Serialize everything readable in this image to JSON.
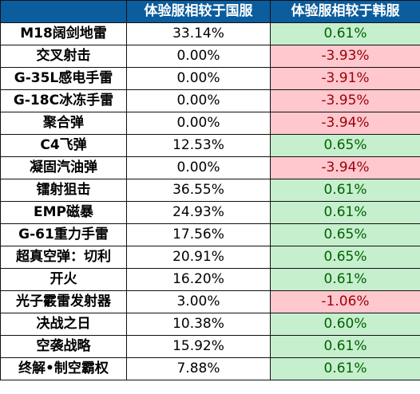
{
  "header": {
    "corner": "",
    "col_cn": "体验服相较于国服",
    "col_kr": "体验服相较于韩服"
  },
  "colors": {
    "header_bg": "#0b5d9e",
    "positive_bg": "#c6efce",
    "positive_text": "#006100",
    "negative_bg": "#ffc7ce",
    "negative_text": "#9c0006"
  },
  "rows": [
    {
      "name": "M18阔剑地雷",
      "cn": "33.14%",
      "kr": "0.61%",
      "sign": "pos"
    },
    {
      "name": "交叉射击",
      "cn": "0.00%",
      "kr": "-3.93%",
      "sign": "neg"
    },
    {
      "name": "G-35L感电手雷",
      "cn": "0.00%",
      "kr": "-3.91%",
      "sign": "neg"
    },
    {
      "name": "G-18C冰冻手雷",
      "cn": "0.00%",
      "kr": "-3.95%",
      "sign": "neg"
    },
    {
      "name": "聚合弹",
      "cn": "0.00%",
      "kr": "-3.94%",
      "sign": "neg"
    },
    {
      "name": "C4飞弹",
      "cn": "12.53%",
      "kr": "0.65%",
      "sign": "pos"
    },
    {
      "name": "凝固汽油弹",
      "cn": "0.00%",
      "kr": "-3.94%",
      "sign": "neg"
    },
    {
      "name": "镭射狙击",
      "cn": "36.55%",
      "kr": "0.61%",
      "sign": "pos"
    },
    {
      "name": "EMP磁暴",
      "cn": "24.93%",
      "kr": "0.61%",
      "sign": "pos"
    },
    {
      "name": "G-61重力手雷",
      "cn": "17.56%",
      "kr": "0.65%",
      "sign": "pos"
    },
    {
      "name": "超真空弹：切利",
      "cn": "20.91%",
      "kr": "0.65%",
      "sign": "pos"
    },
    {
      "name": "开火",
      "cn": "16.20%",
      "kr": "0.61%",
      "sign": "pos"
    },
    {
      "name": "光子霰雷发射器",
      "cn": "3.00%",
      "kr": "-1.06%",
      "sign": "neg"
    },
    {
      "name": "决战之日",
      "cn": "10.38%",
      "kr": "0.60%",
      "sign": "pos"
    },
    {
      "name": "空袭战略",
      "cn": "15.92%",
      "kr": "0.61%",
      "sign": "pos"
    },
    {
      "name": "终解•制空霸权",
      "cn": "7.88%",
      "kr": "0.61%",
      "sign": "pos"
    }
  ]
}
